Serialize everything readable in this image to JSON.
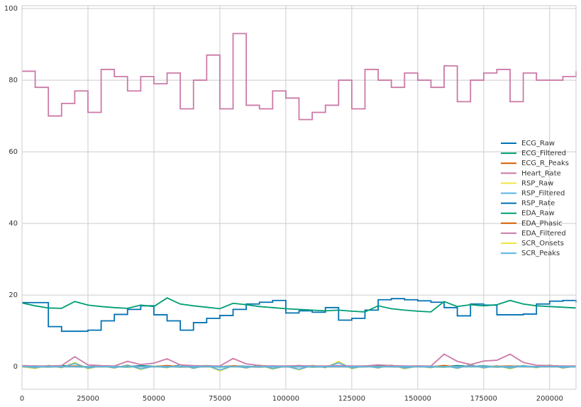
{
  "chart_data": {
    "type": "line",
    "x": [
      0,
      5000,
      10000,
      15000,
      20000,
      25000,
      30000,
      35000,
      40000,
      45000,
      50000,
      55000,
      60000,
      65000,
      70000,
      75000,
      80000,
      85000,
      90000,
      95000,
      100000,
      105000,
      110000,
      115000,
      120000,
      125000,
      130000,
      135000,
      140000,
      145000,
      150000,
      155000,
      160000,
      165000,
      170000,
      175000,
      180000,
      185000,
      190000,
      195000,
      200000,
      205000,
      210000
    ],
    "series": [
      {
        "name": "ECG_Raw",
        "color": "#0072B2",
        "values": [
          0.1,
          0.2,
          0,
          0.3,
          0.1,
          0,
          0.2,
          0.1,
          0,
          0.3,
          0.1,
          0.2,
          0,
          0.1,
          0.3,
          0,
          0.2,
          0.1,
          0,
          0.2,
          0.1,
          0.3,
          0,
          0.1,
          0.2,
          0,
          0.1,
          0.3,
          0.1,
          0,
          0.2,
          0.1,
          0,
          0.3,
          0.1,
          0.2,
          0,
          0.1,
          0.2,
          0,
          0.3,
          0.1,
          0.1
        ]
      },
      {
        "name": "ECG_Filtered",
        "color": "#009E73",
        "values": [
          0,
          0.1,
          -0.1,
          0.2,
          0,
          -0.1,
          0.1,
          0,
          -0.1,
          0.2,
          0,
          0.1,
          -0.1,
          0,
          0.2,
          -0.1,
          0.1,
          0,
          -0.1,
          0.1,
          0,
          0.2,
          -0.1,
          0,
          0.1,
          -0.1,
          0,
          0.2,
          0,
          -0.1,
          0.1,
          0,
          -0.1,
          0.2,
          0,
          0.1,
          -0.1,
          0,
          0.1,
          -0.1,
          0.2,
          0,
          0
        ]
      },
      {
        "name": "ECG_R_Peaks",
        "color": "#D55E00",
        "values": [
          0,
          0,
          0,
          0,
          0,
          0,
          0,
          0,
          0,
          0,
          0,
          0,
          0,
          0,
          0,
          0,
          0,
          0,
          0,
          0,
          0,
          0,
          0,
          0,
          0,
          0,
          0,
          0,
          0,
          0,
          0,
          0,
          0,
          0,
          0,
          0,
          0,
          0,
          0,
          0,
          0,
          0,
          0
        ]
      },
      {
        "name": "Heart_Rate",
        "color": "#CC79A7",
        "drawstyle": "steps-post",
        "values": [
          82.5,
          78,
          70,
          73.5,
          77,
          71,
          83,
          81,
          77,
          81,
          79,
          82,
          72,
          80,
          87,
          72,
          93,
          73,
          72,
          77,
          75,
          69,
          71,
          73,
          80,
          72,
          83,
          80,
          78,
          82,
          80,
          78,
          84,
          74,
          80,
          82,
          83,
          74,
          82,
          80,
          80,
          81,
          82.5
        ]
      },
      {
        "name": "RSP_Raw",
        "color": "#F0E442",
        "values": [
          0,
          -0.5,
          0.4,
          -0.3,
          1.2,
          -0.6,
          0.3,
          -0.4,
          0.5,
          -0.8,
          0.2,
          -0.3,
          0.6,
          -0.5,
          0.4,
          -1.2,
          0.3,
          -0.4,
          0.5,
          -0.7,
          0.2,
          -0.9,
          0.4,
          -0.3,
          1.5,
          -0.6,
          0.3,
          -0.4,
          0.5,
          -0.6,
          0.2,
          -0.3,
          0.4,
          -0.5,
          0.6,
          -0.4,
          0.3,
          -0.6,
          0.4,
          -0.3,
          0.5,
          -0.4,
          0.2
        ]
      },
      {
        "name": "RSP_Filtered",
        "color": "#56B4E9",
        "values": [
          0.1,
          -0.3,
          0.3,
          -0.2,
          0.9,
          -0.4,
          0.2,
          -0.3,
          0.4,
          -0.6,
          0.1,
          -0.2,
          0.5,
          -0.4,
          0.3,
          -0.9,
          0.2,
          -0.3,
          0.4,
          -0.5,
          0.1,
          -0.7,
          0.3,
          -0.2,
          1.1,
          -0.4,
          0.2,
          -0.3,
          0.4,
          -0.4,
          0.1,
          -0.2,
          0.3,
          -0.4,
          0.5,
          -0.3,
          0.2,
          -0.4,
          0.3,
          -0.2,
          0.4,
          -0.3,
          0.1
        ]
      },
      {
        "name": "RSP_Rate",
        "color": "#0072B2",
        "drawstyle": "steps-post",
        "values": [
          17.9,
          17.9,
          11.2,
          9.9,
          9.9,
          10.2,
          12.8,
          14.6,
          16,
          17,
          14.5,
          12.8,
          10.2,
          12.3,
          13.5,
          14.3,
          16,
          17.5,
          18,
          18.5,
          15,
          15.6,
          15.2,
          16.5,
          13,
          13.5,
          15.8,
          18.7,
          19,
          18.7,
          18.4,
          18,
          16.5,
          14.2,
          17.5,
          17.2,
          14.5,
          14.5,
          14.7,
          17.5,
          18.3,
          18.5,
          17.9
        ]
      },
      {
        "name": "EDA_Raw",
        "color": "#009E73",
        "values": [
          17.8,
          17,
          16.4,
          16.3,
          18.2,
          17.2,
          16.8,
          16.5,
          16.3,
          17.2,
          16.8,
          19.2,
          17.5,
          17,
          16.6,
          16.2,
          17.7,
          17.3,
          16.8,
          16.5,
          16.2,
          16,
          15.8,
          15.6,
          15.8,
          15.5,
          15.3,
          17,
          16.2,
          15.8,
          15.5,
          15.3,
          18.2,
          16.8,
          17.3,
          17,
          17.3,
          18.5,
          17.5,
          17,
          16.8,
          16.6,
          16.4
        ]
      },
      {
        "name": "EDA_Phasic",
        "color": "#D55E00",
        "values": [
          0,
          0,
          0,
          0,
          0.2,
          0,
          0,
          0,
          0.1,
          0,
          0,
          0.3,
          0,
          0,
          0,
          0,
          0.2,
          0,
          0,
          0,
          0,
          0,
          0,
          0,
          0,
          0,
          0,
          0.1,
          0,
          0,
          0,
          0,
          0.3,
          0,
          0.1,
          0,
          0.1,
          0.2,
          0,
          0,
          0,
          0,
          0
        ]
      },
      {
        "name": "EDA_Filtered",
        "color": "#CC79A7",
        "values": [
          0.3,
          0.2,
          0.2,
          0.3,
          2.8,
          0.5,
          0.3,
          0.2,
          1.5,
          0.6,
          1,
          2.2,
          0.5,
          0.3,
          0.2,
          0.2,
          2.3,
          0.8,
          0.3,
          0.2,
          0.2,
          0.3,
          0.2,
          0.2,
          0.3,
          0.2,
          0.2,
          0.5,
          0.3,
          0.2,
          0.2,
          0.2,
          3.5,
          1.5,
          0.6,
          1.6,
          1.8,
          3.5,
          1.2,
          0.4,
          0.3,
          0.2,
          0.2
        ]
      },
      {
        "name": "SCR_Onsets",
        "color": "#F0E442",
        "values": [
          0,
          0,
          0,
          0,
          0,
          0,
          0,
          0,
          0,
          0,
          0,
          0,
          0,
          0,
          0,
          0,
          0,
          0,
          0,
          0,
          0,
          0,
          0,
          0,
          0,
          0,
          0,
          0,
          0,
          0,
          0,
          0,
          0,
          0,
          0,
          0,
          0,
          0,
          0,
          0,
          0,
          0,
          0
        ]
      },
      {
        "name": "SCR_Peaks",
        "color": "#56B4E9",
        "values": [
          0,
          0,
          0,
          0,
          0,
          0,
          0,
          0,
          0,
          0,
          0,
          0,
          0,
          0,
          0,
          0,
          0,
          0,
          0,
          0,
          0,
          0,
          0,
          0,
          0,
          0,
          0,
          0,
          0,
          0,
          0,
          0,
          0,
          0,
          0,
          0,
          0,
          0,
          0,
          0,
          0,
          0,
          0
        ]
      }
    ],
    "xlim": [
      0,
      210000
    ],
    "ylim": [
      -6.3,
      100.8
    ],
    "xticks": [
      0,
      25000,
      50000,
      75000,
      100000,
      125000,
      150000,
      175000,
      200000
    ],
    "yticks": [
      0,
      20,
      40,
      60,
      80,
      100
    ],
    "grid": true,
    "legend": "right"
  }
}
